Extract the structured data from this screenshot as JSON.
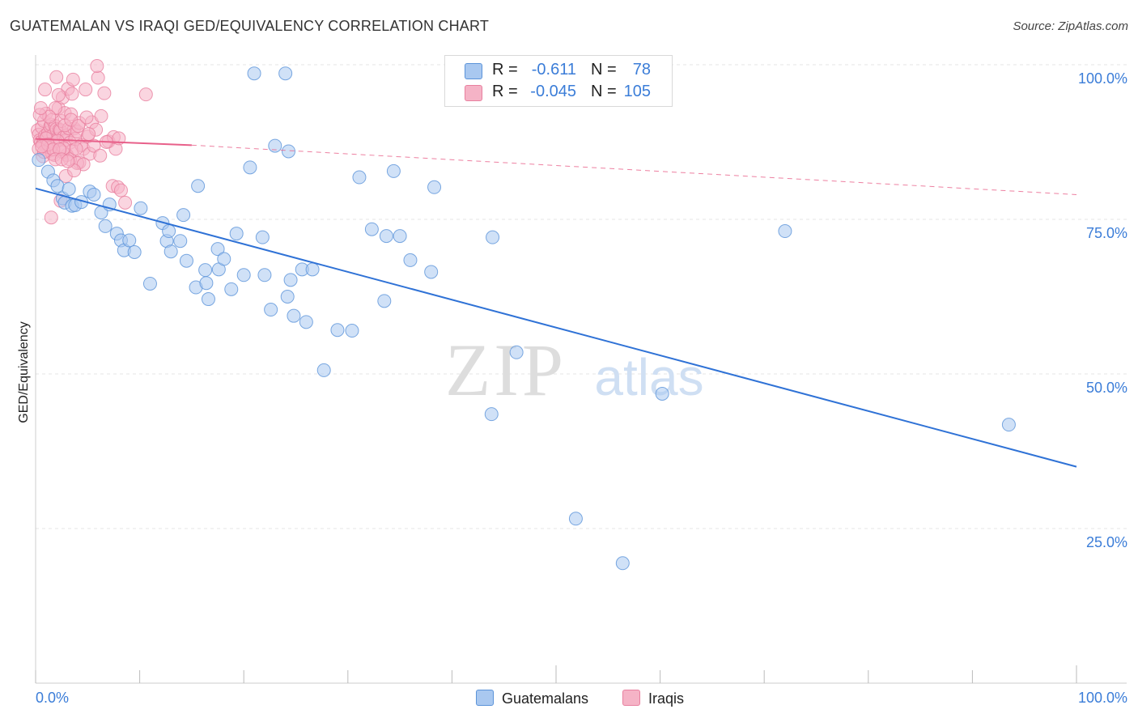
{
  "header": {
    "title": "GUATEMALAN VS IRAQI GED/EQUIVALENCY CORRELATION CHART",
    "source": "Source: ZipAtlas.com"
  },
  "watermark": {
    "zip": "ZIP",
    "atlas": "atlas"
  },
  "legend": {
    "rows": [
      {
        "r_label": "R =",
        "r_value": "-0.611",
        "n_label": "N =",
        "n_value": "78",
        "color": "#a9c8f0"
      },
      {
        "r_label": "R =",
        "r_value": "-0.045",
        "n_label": "N =",
        "n_value": "105",
        "color": "#f5b3c6"
      }
    ]
  },
  "bottom_legend": [
    {
      "label": "Guatemalans",
      "color": "#a9c8f0"
    },
    {
      "label": "Iraqis",
      "color": "#f5b3c6"
    }
  ],
  "chart_data": {
    "type": "scatter",
    "title": "GUATEMALAN VS IRAQI GED/EQUIVALENCY CORRELATION CHART",
    "xlabel": "",
    "ylabel": "GED/Equivalency",
    "xlim": [
      0,
      100
    ],
    "ylim": [
      0,
      100
    ],
    "x_tick_labels": [
      "0.0%",
      "100.0%"
    ],
    "y_ticks": [
      25,
      50,
      75,
      100
    ],
    "y_tick_labels": [
      "25.0%",
      "50.0%",
      "75.0%",
      "100.0%"
    ],
    "grid": true,
    "legend_position": "top-center",
    "colors": {
      "blue_fill": "#a9c8f0",
      "blue_stroke": "#5b93d9",
      "blue_line": "#2f72d6",
      "pink_fill": "#f5b3c6",
      "pink_stroke": "#e8809f",
      "pink_line": "#e8608a",
      "tick_label": "#3b7dd8"
    },
    "series": [
      {
        "name": "Guatemalans",
        "trend": {
          "x": [
            0,
            100
          ],
          "y": [
            80.0,
            35.0
          ],
          "style": "solid"
        },
        "points": [
          [
            0.3,
            84.6
          ],
          [
            1.2,
            82.7
          ],
          [
            1.7,
            81.3
          ],
          [
            2.1,
            80.4
          ],
          [
            2.6,
            78.4
          ],
          [
            2.8,
            77.7
          ],
          [
            3.2,
            79.9
          ],
          [
            3.5,
            77.2
          ],
          [
            3.8,
            77.3
          ],
          [
            4.4,
            77.8
          ],
          [
            5.2,
            79.5
          ],
          [
            5.6,
            79.0
          ],
          [
            6.3,
            76.1
          ],
          [
            6.7,
            73.9
          ],
          [
            7.1,
            77.4
          ],
          [
            7.8,
            72.7
          ],
          [
            8.2,
            71.6
          ],
          [
            8.5,
            70.0
          ],
          [
            9.0,
            71.6
          ],
          [
            9.5,
            69.7
          ],
          [
            10.1,
            76.8
          ],
          [
            11.0,
            64.6
          ],
          [
            12.2,
            74.4
          ],
          [
            12.6,
            71.5
          ],
          [
            12.8,
            73.1
          ],
          [
            13.0,
            69.8
          ],
          [
            13.9,
            71.5
          ],
          [
            14.2,
            75.7
          ],
          [
            14.5,
            68.3
          ],
          [
            15.4,
            64.0
          ],
          [
            15.6,
            80.4
          ],
          [
            16.3,
            66.8
          ],
          [
            16.4,
            64.7
          ],
          [
            16.6,
            62.1
          ],
          [
            17.5,
            70.2
          ],
          [
            17.6,
            66.9
          ],
          [
            18.1,
            68.6
          ],
          [
            18.8,
            63.7
          ],
          [
            19.3,
            72.7
          ],
          [
            20.0,
            66.0
          ],
          [
            20.6,
            83.4
          ],
          [
            21.0,
            98.6
          ],
          [
            21.8,
            72.1
          ],
          [
            22.0,
            66.0
          ],
          [
            22.6,
            60.4
          ],
          [
            23.0,
            86.9
          ],
          [
            24.0,
            98.6
          ],
          [
            24.2,
            62.5
          ],
          [
            24.3,
            86.0
          ],
          [
            24.5,
            65.2
          ],
          [
            24.8,
            59.4
          ],
          [
            25.6,
            66.9
          ],
          [
            26.0,
            58.4
          ],
          [
            26.6,
            66.9
          ],
          [
            27.7,
            50.6
          ],
          [
            29.0,
            57.1
          ],
          [
            30.4,
            57.0
          ],
          [
            31.1,
            81.8
          ],
          [
            32.3,
            73.4
          ],
          [
            33.5,
            61.8
          ],
          [
            33.7,
            72.3
          ],
          [
            34.4,
            82.8
          ],
          [
            35.0,
            72.3
          ],
          [
            36.0,
            68.4
          ],
          [
            38.0,
            66.5
          ],
          [
            38.3,
            80.2
          ],
          [
            43.8,
            43.5
          ],
          [
            43.9,
            72.1
          ],
          [
            46.2,
            53.5
          ],
          [
            51.9,
            26.6
          ],
          [
            56.4,
            19.4
          ],
          [
            60.2,
            46.8
          ],
          [
            72.0,
            73.1
          ],
          [
            93.5,
            41.8
          ]
        ]
      },
      {
        "name": "Iraqis",
        "trend": {
          "x": [
            0,
            15,
            100
          ],
          "y": [
            88.0,
            87.0,
            79.0
          ],
          "style": "solid-then-dashed"
        },
        "points": [
          [
            0.2,
            89.4
          ],
          [
            0.3,
            88.7
          ],
          [
            0.4,
            87.8
          ],
          [
            0.5,
            87.5
          ],
          [
            0.6,
            89.9
          ],
          [
            0.7,
            87.2
          ],
          [
            0.8,
            90.9
          ],
          [
            0.9,
            88.5
          ],
          [
            1.0,
            92.1
          ],
          [
            1.1,
            88.3
          ],
          [
            1.2,
            89.0
          ],
          [
            1.3,
            86.1
          ],
          [
            1.4,
            90.0
          ],
          [
            1.5,
            90.3
          ],
          [
            1.6,
            91.1
          ],
          [
            1.7,
            88.7
          ],
          [
            1.8,
            87.3
          ],
          [
            1.9,
            90.1
          ],
          [
            2.0,
            89.6
          ],
          [
            2.1,
            88.0
          ],
          [
            2.2,
            93.0
          ],
          [
            2.3,
            89.5
          ],
          [
            2.4,
            89.4
          ],
          [
            2.5,
            90.9
          ],
          [
            2.6,
            94.7
          ],
          [
            2.7,
            88.3
          ],
          [
            2.8,
            92.2
          ],
          [
            2.9,
            87.8
          ],
          [
            3.0,
            88.6
          ],
          [
            3.1,
            96.1
          ],
          [
            3.2,
            89.7
          ],
          [
            3.3,
            87.4
          ],
          [
            3.4,
            92.0
          ],
          [
            3.5,
            86.1
          ],
          [
            3.6,
            97.6
          ],
          [
            3.7,
            89.7
          ],
          [
            3.8,
            88.0
          ],
          [
            4.0,
            89.2
          ],
          [
            4.2,
            90.6
          ],
          [
            4.4,
            87.0
          ],
          [
            4.6,
            86.4
          ],
          [
            4.8,
            96.0
          ],
          [
            5.0,
            88.4
          ],
          [
            5.2,
            85.6
          ],
          [
            5.4,
            90.7
          ],
          [
            5.6,
            86.9
          ],
          [
            5.8,
            89.5
          ],
          [
            6.0,
            97.9
          ],
          [
            6.3,
            91.7
          ],
          [
            6.6,
            95.4
          ],
          [
            7.0,
            87.6
          ],
          [
            7.4,
            80.4
          ],
          [
            7.7,
            86.4
          ],
          [
            7.9,
            80.2
          ],
          [
            8.2,
            79.7
          ],
          [
            8.6,
            77.7
          ],
          [
            10.6,
            95.2
          ],
          [
            1.5,
            75.3
          ],
          [
            2.4,
            78.0
          ],
          [
            3.0,
            85.4
          ],
          [
            2.2,
            95.1
          ],
          [
            1.9,
            93.0
          ],
          [
            0.9,
            96.0
          ],
          [
            1.3,
            91.6
          ],
          [
            2.0,
            98.0
          ],
          [
            3.5,
            95.3
          ],
          [
            4.2,
            84.2
          ],
          [
            5.9,
            99.8
          ],
          [
            0.7,
            85.2
          ],
          [
            1.1,
            86.7
          ],
          [
            1.8,
            85.4
          ],
          [
            2.6,
            85.9
          ],
          [
            3.3,
            84.7
          ],
          [
            4.0,
            84.1
          ],
          [
            4.6,
            83.9
          ],
          [
            0.4,
            91.9
          ],
          [
            1.6,
            85.6
          ],
          [
            2.9,
            82.0
          ],
          [
            3.7,
            82.9
          ],
          [
            0.5,
            93.0
          ],
          [
            1.0,
            88.1
          ],
          [
            1.4,
            86.6
          ],
          [
            2.1,
            87.7
          ],
          [
            2.7,
            86.5
          ],
          [
            3.9,
            86.4
          ],
          [
            5.1,
            88.8
          ],
          [
            6.2,
            85.3
          ],
          [
            7.5,
            88.3
          ],
          [
            0.3,
            86.4
          ],
          [
            0.8,
            85.9
          ],
          [
            1.2,
            87.1
          ],
          [
            1.7,
            86.3
          ],
          [
            2.3,
            86.3
          ],
          [
            2.8,
            90.2
          ],
          [
            3.4,
            91.1
          ],
          [
            4.1,
            90.1
          ],
          [
            4.9,
            91.5
          ],
          [
            0.6,
            86.8
          ],
          [
            1.9,
            84.7
          ],
          [
            2.5,
            84.7
          ],
          [
            3.1,
            84.4
          ],
          [
            6.8,
            87.5
          ],
          [
            8.0,
            88.1
          ]
        ]
      }
    ]
  }
}
